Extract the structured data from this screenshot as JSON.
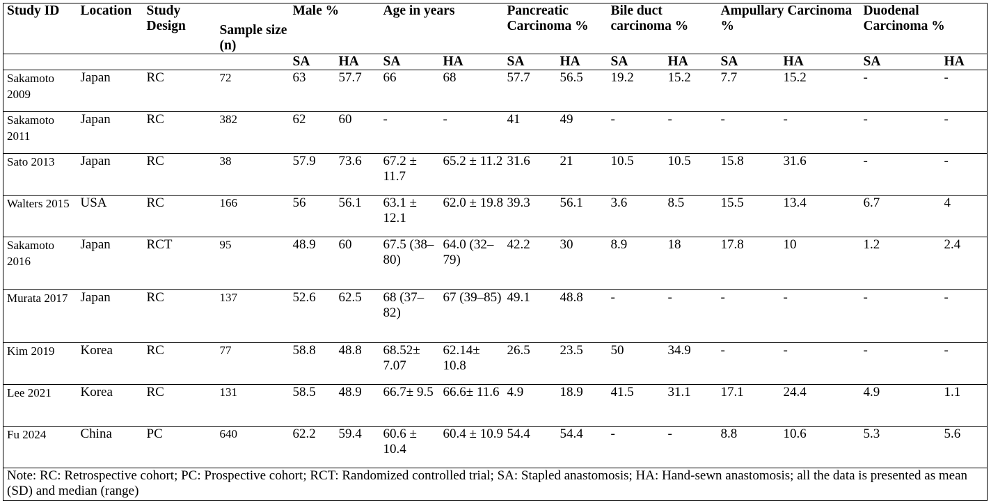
{
  "table": {
    "header": {
      "study_id": "Study ID",
      "location": "Location",
      "study_design": "Study Design",
      "sample_size": "Sample size (n)",
      "male": "Male %",
      "age": "Age in years",
      "pancreatic": "Pancreatic Carcinoma %",
      "bile_duct": "Bile duct carcinoma %",
      "ampullary": "Ampullary Carcinoma %",
      "duodenal": "Duodenal Carcinoma %",
      "sa": "SA",
      "ha": "HA"
    },
    "rows": [
      {
        "study": "Sakamoto 2009",
        "location": "Japan",
        "design": "RC",
        "n": "72",
        "male_sa": "63",
        "male_ha": "57.7",
        "age_sa": "66",
        "age_ha": "68",
        "panc_sa": "57.7",
        "panc_ha": "56.5",
        "bile_sa": "19.2",
        "bile_ha": "15.2",
        "amp_sa": "7.7",
        "amp_ha": "15.2",
        "duo_sa": "-",
        "duo_ha": "-"
      },
      {
        "study": "Sakamoto 2011",
        "location": "Japan",
        "design": "RC",
        "n": "382",
        "male_sa": "62",
        "male_ha": "60",
        "age_sa": "-",
        "age_ha": "-",
        "panc_sa": "41",
        "panc_ha": "49",
        "bile_sa": "-",
        "bile_ha": "-",
        "amp_sa": "-",
        "amp_ha": "-",
        "duo_sa": "-",
        "duo_ha": "-"
      },
      {
        "study": "Sato 2013",
        "location": "Japan",
        "design": "RC",
        "n": "38",
        "male_sa": "57.9",
        "male_ha": "73.6",
        "age_sa": "67.2 ± 11.7",
        "age_ha": "65.2 ± 11.2",
        "panc_sa": "31.6",
        "panc_ha": "21",
        "bile_sa": "10.5",
        "bile_ha": "10.5",
        "amp_sa": "15.8",
        "amp_ha": "31.6",
        "duo_sa": "-",
        "duo_ha": "-"
      },
      {
        "study": "Walters 2015",
        "location": "USA",
        "design": "RC",
        "n": "166",
        "male_sa": "56",
        "male_ha": "56.1",
        "age_sa": "63.1 ± 12.1",
        "age_ha": "62.0 ± 19.8",
        "panc_sa": "39.3",
        "panc_ha": "56.1",
        "bile_sa": "3.6",
        "bile_ha": "8.5",
        "amp_sa": "15.5",
        "amp_ha": "13.4",
        "duo_sa": "6.7",
        "duo_ha": "4"
      },
      {
        "study": "Sakamoto 2016",
        "location": "Japan",
        "design": "RCT",
        "n": "95",
        "male_sa": "48.9",
        "male_ha": "60",
        "age_sa": "67.5 (38–80)",
        "age_ha": "64.0 (32–79)",
        "panc_sa": "42.2",
        "panc_ha": "30",
        "bile_sa": "8.9",
        "bile_ha": "18",
        "amp_sa": "17.8",
        "amp_ha": "10",
        "duo_sa": "1.2",
        "duo_ha": "2.4"
      },
      {
        "study": "Murata 2017",
        "location": "Japan",
        "design": "RC",
        "n": "137",
        "male_sa": "52.6",
        "male_ha": "62.5",
        "age_sa": "68 (37–82)",
        "age_ha": "67 (39–85)",
        "panc_sa": "49.1",
        "panc_ha": "48.8",
        "bile_sa": "-",
        "bile_ha": "-",
        "amp_sa": "-",
        "amp_ha": "-",
        "duo_sa": "-",
        "duo_ha": "-"
      },
      {
        "study": "Kim 2019",
        "location": "Korea",
        "design": "RC",
        "n": "77",
        "male_sa": "58.8",
        "male_ha": "48.8",
        "age_sa": "68.52± 7.07",
        "age_ha": "62.14± 10.8",
        "panc_sa": "26.5",
        "panc_ha": "23.5",
        "bile_sa": "50",
        "bile_ha": "34.9",
        "amp_sa": "-",
        "amp_ha": "-",
        "duo_sa": "-",
        "duo_ha": "-"
      },
      {
        "study": "Lee 2021",
        "location": "Korea",
        "design": "RC",
        "n": "131",
        "male_sa": "58.5",
        "male_ha": "48.9",
        "age_sa": "66.7± 9.5",
        "age_ha": "66.6± 11.6",
        "panc_sa": "4.9",
        "panc_ha": "18.9",
        "bile_sa": "41.5",
        "bile_ha": "31.1",
        "amp_sa": "17.1",
        "amp_ha": "24.4",
        "duo_sa": "4.9",
        "duo_ha": "1.1"
      },
      {
        "study": "Fu 2024",
        "location": "China",
        "design": "PC",
        "n": "640",
        "male_sa": "62.2",
        "male_ha": "59.4",
        "age_sa": "60.6 ± 10.4",
        "age_ha": "60.4 ± 10.9",
        "panc_sa": "54.4",
        "panc_ha": "54.4",
        "bile_sa": "-",
        "bile_ha": "-",
        "amp_sa": "8.8",
        "amp_ha": "10.6",
        "duo_sa": "5.3",
        "duo_ha": "5.6"
      }
    ],
    "note": "Note:  RC: Retrospective cohort; PC: Prospective cohort; RCT: Randomized controlled trial; SA: Stapled anastomosis; HA: Hand-sewn anastomosis; all the data is presented as mean (SD) and median (range)"
  }
}
